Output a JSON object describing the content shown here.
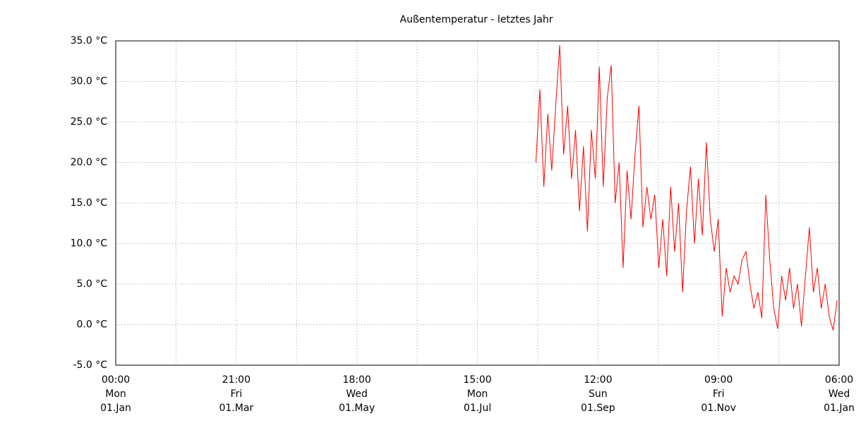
{
  "chart_data": {
    "type": "line",
    "title": "Außentemperatur - letztes Jahr",
    "x": [
      212,
      214,
      216,
      218,
      220,
      222,
      224,
      226,
      228,
      230,
      232,
      234,
      236,
      238,
      240,
      242,
      244,
      246,
      248,
      250,
      252,
      254,
      256,
      258,
      260,
      262,
      264,
      266,
      268,
      270,
      272,
      274,
      276,
      278,
      280,
      282,
      284,
      286,
      288,
      290,
      292,
      294,
      296,
      298,
      300,
      302,
      304,
      306,
      308,
      310,
      312,
      314,
      316,
      318,
      320,
      322,
      324,
      326,
      328,
      330,
      332,
      334,
      336,
      338,
      340,
      342,
      344,
      346,
      348,
      350,
      352,
      354,
      356,
      358,
      360,
      362,
      364
    ],
    "series": [
      {
        "name": "Außentemperatur",
        "color": "#ff0000",
        "values": [
          20,
          29,
          17,
          26,
          19,
          27,
          34.5,
          21,
          27,
          18,
          24,
          14,
          22,
          11.5,
          24,
          18,
          31.8,
          17,
          28,
          32,
          15,
          20,
          7,
          19,
          13,
          21,
          27,
          12,
          17,
          13,
          16,
          7,
          13,
          6,
          17,
          9,
          15,
          4,
          14,
          19.5,
          10,
          18,
          11,
          22.5,
          13,
          9,
          13,
          1,
          7,
          4,
          6,
          5,
          8,
          9,
          5,
          2,
          4,
          0.8,
          16,
          8,
          2,
          -0.5,
          6,
          3,
          7,
          2,
          5,
          -0.2,
          6,
          12,
          4,
          7,
          2,
          5,
          1,
          -0.7,
          3
        ]
      }
    ],
    "xlim": [
      0,
      365
    ],
    "xticks": [
      {
        "value": 0,
        "label": "00:00\nMon\n01.Jan"
      },
      {
        "value": 60.83,
        "label": "21:00\nFri\n01.Mar"
      },
      {
        "value": 121.67,
        "label": "18:00\nWed\n01.May"
      },
      {
        "value": 182.5,
        "label": "15:00\nMon\n01.Jul"
      },
      {
        "value": 243.33,
        "label": "12:00\nSun\n01.Sep"
      },
      {
        "value": 304.17,
        "label": "09:00\nFri\n01.Nov"
      },
      {
        "value": 365,
        "label": "06:00\nWed\n01.Jan"
      }
    ],
    "xminorticks": [
      30.42,
      91.25,
      152.08,
      212.92,
      273.75,
      334.58
    ],
    "ylim": [
      -5,
      35
    ],
    "yticks": [
      {
        "value": -5,
        "label": "-5.0 °C"
      },
      {
        "value": 0,
        "label": "0.0 °C"
      },
      {
        "value": 5,
        "label": "5.0 °C"
      },
      {
        "value": 10,
        "label": "10.0 °C"
      },
      {
        "value": 15,
        "label": "15.0 °C"
      },
      {
        "value": 20,
        "label": "20.0 °C"
      },
      {
        "value": 25,
        "label": "25.0 °C"
      },
      {
        "value": 30,
        "label": "30.0 °C"
      },
      {
        "value": 35,
        "label": "35.0 °C"
      }
    ],
    "grid": true
  }
}
